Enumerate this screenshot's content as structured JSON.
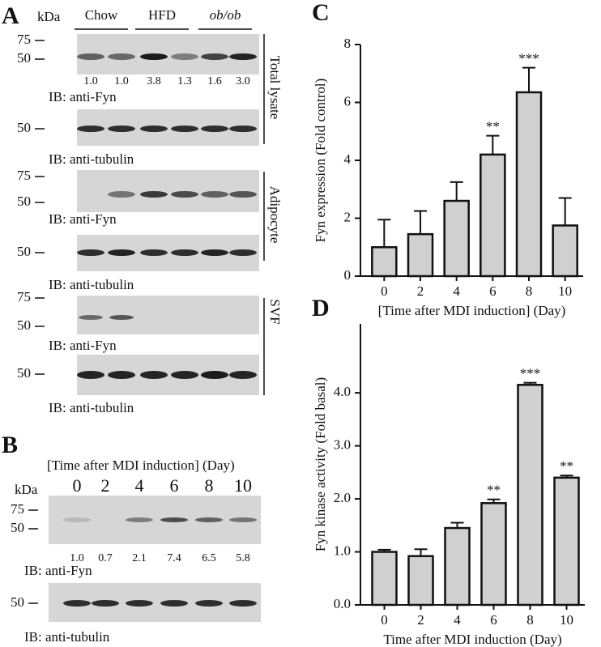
{
  "panel_a": {
    "label": "A",
    "kda": "kDa",
    "groups": [
      "Chow",
      "HFD",
      "ob/ob"
    ],
    "marker_75": "75",
    "marker_50": "50",
    "quant": [
      "1.0",
      "1.0",
      "3.8",
      "1.3",
      "1.6",
      "3.0"
    ],
    "captions": [
      "IB: anti-Fyn",
      "IB: anti-tubulin",
      "IB: anti-Fyn",
      "IB: anti-tubulin",
      "IB: anti-Fyn",
      "IB: anti-tubulin"
    ],
    "side_labels": [
      "Total lysate",
      "Adipocyte",
      "SVF"
    ]
  },
  "panel_b": {
    "label": "B",
    "title": "[Time after MDI induction] (Day)",
    "kda": "kDa",
    "days": [
      "0",
      "2",
      "4",
      "6",
      "8",
      "10"
    ],
    "marker_75": "75",
    "marker_50": "50",
    "quant": [
      "1.0",
      "0.7",
      "2.1",
      "7.4",
      "6.5",
      "5.8"
    ],
    "captions": [
      "IB: anti-Fyn",
      "IB: anti-tubulin"
    ]
  },
  "chart_data": [
    {
      "type": "bar",
      "label": "C",
      "ylabel": "Fyn expression (Fold control)",
      "xlabel": "[Time after MDI induction] (Day)",
      "categories": [
        "0",
        "2",
        "4",
        "6",
        "8",
        "10"
      ],
      "values": [
        1.0,
        1.45,
        2.6,
        4.2,
        6.35,
        1.75
      ],
      "errors": [
        0.95,
        0.8,
        0.65,
        0.65,
        0.85,
        0.95
      ],
      "value_annotations": [
        null,
        null,
        null,
        "**",
        "***",
        null
      ],
      "ylim": [
        0,
        8
      ],
      "yticks": [
        0,
        2,
        4,
        6,
        8
      ],
      "color": "#d0d0d0"
    },
    {
      "type": "bar",
      "label": "D",
      "ylabel": "Fyn kinase activity (Fold basal)",
      "xlabel": "Time after MDI induction (Day)",
      "categories": [
        "0",
        "2",
        "4",
        "6",
        "8",
        "10"
      ],
      "values": [
        1.0,
        0.92,
        1.45,
        1.92,
        4.15,
        2.4
      ],
      "errors": [
        0.04,
        0.13,
        0.1,
        0.07,
        0.04,
        0.04
      ],
      "value_annotations": [
        null,
        null,
        null,
        "**",
        "***",
        "**"
      ],
      "ylim": [
        0,
        5.3
      ],
      "yticks": [
        {
          "value": 0,
          "label": "0.0"
        },
        {
          "value": 1,
          "label": "1.0"
        },
        {
          "value": 2,
          "label": "2.0"
        },
        {
          "value": 3,
          "label": "3.0"
        },
        {
          "value": 4,
          "label": "4.0"
        }
      ],
      "color": "#d0d0d0"
    }
  ]
}
